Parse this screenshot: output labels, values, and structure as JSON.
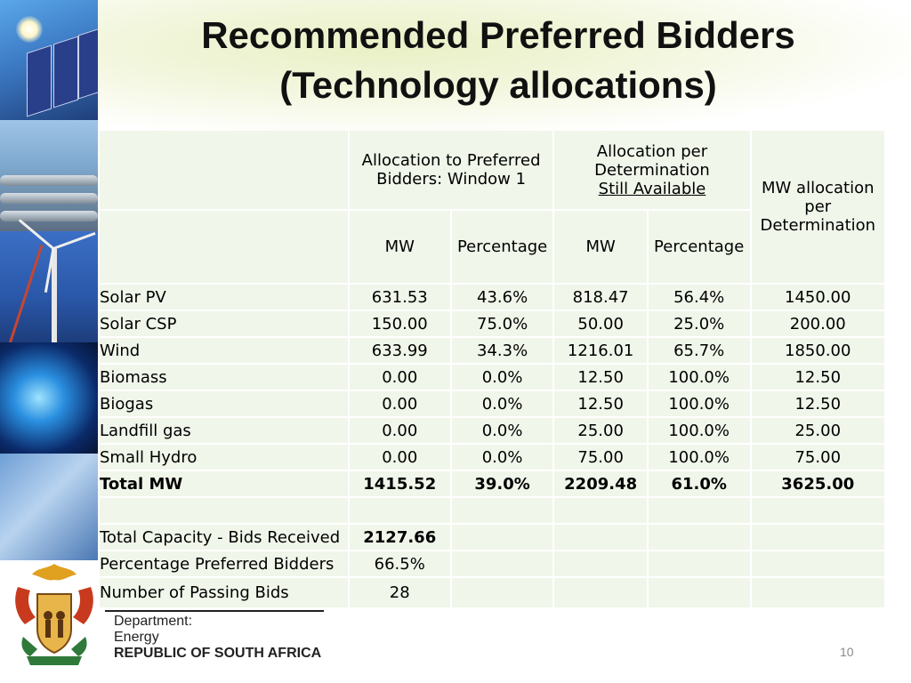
{
  "slide": {
    "title_line1": "Recommended Preferred Bidders",
    "title_line2": "(Technology allocations)",
    "page_number": "10"
  },
  "table": {
    "header_group1": "Allocation to Preferred Bidders: Window 1",
    "header_group2_line1": "Allocation per Determination",
    "header_group2_line2": "Still Available",
    "header_group3": "MW allocation per Determination",
    "sub_mw1": "MW",
    "sub_pct1": "Percentage",
    "sub_mw2": "MW",
    "sub_pct2": "Percentage",
    "rows": [
      {
        "label": "Solar PV",
        "mw1": "631.53",
        "pct1": "43.6%",
        "mw2": "818.47",
        "pct2": "56.4%",
        "total": "1450.00"
      },
      {
        "label": "Solar CSP",
        "mw1": "150.00",
        "pct1": "75.0%",
        "mw2": "50.00",
        "pct2": "25.0%",
        "total": "200.00"
      },
      {
        "label": "Wind",
        "mw1": "633.99",
        "pct1": "34.3%",
        "mw2": "1216.01",
        "pct2": "65.7%",
        "total": "1850.00"
      },
      {
        "label": "Biomass",
        "mw1": "0.00",
        "pct1": "0.0%",
        "mw2": "12.50",
        "pct2": "100.0%",
        "total": "12.50"
      },
      {
        "label": "Biogas",
        "mw1": "0.00",
        "pct1": "0.0%",
        "mw2": "12.50",
        "pct2": "100.0%",
        "total": "12.50"
      },
      {
        "label": "Landfill gas",
        "mw1": "0.00",
        "pct1": "0.0%",
        "mw2": "25.00",
        "pct2": "100.0%",
        "total": "25.00"
      },
      {
        "label": "Small Hydro",
        "mw1": "0.00",
        "pct1": "0.0%",
        "mw2": "75.00",
        "pct2": "100.0%",
        "total": "75.00"
      }
    ],
    "total_row": {
      "label": "Total MW",
      "mw1": "1415.52",
      "pct1": "39.0%",
      "mw2": "2209.48",
      "pct2": "61.0%",
      "total": "3625.00"
    },
    "summary": {
      "bids_received_label": "Total Capacity - Bids Received",
      "bids_received_value": "2127.66",
      "pct_preferred_label": "Percentage Preferred Bidders",
      "pct_preferred_value": "66.5%",
      "passing_bids_label": "Number of Passing Bids",
      "passing_bids_value": "28"
    }
  },
  "footer": {
    "dept_line1": "Department:",
    "dept_line2": "Energy",
    "dept_line3": "REPUBLIC OF SOUTH AFRICA"
  },
  "colors": {
    "cell_background": "#f0f6ea",
    "title_text": "#111111",
    "page_number": "#8a8a8a"
  },
  "icons": [
    "solar-panel-photo",
    "gas-pipes-photo",
    "wind-turbine-photo",
    "blue-flame-photo",
    "glass-tube-photo",
    "coat-of-arms-logo"
  ]
}
